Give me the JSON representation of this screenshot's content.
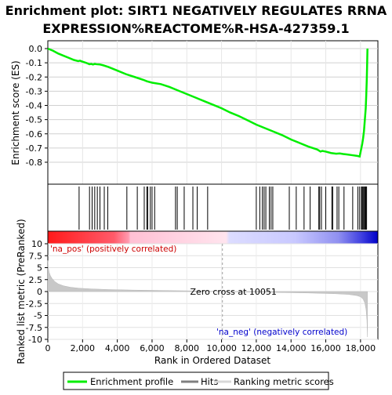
{
  "chart_data": {
    "type": "line",
    "title_line1": "Enrichment plot: SIRT1 NEGATIVELY REGULATES RRNA",
    "title_line2": "EXPRESSION%REACTOME%R-HSA-427359.1",
    "es_panel": {
      "ylabel": "Enrichment score (ES)",
      "ylim": [
        -0.8,
        0.0
      ],
      "yticks": [
        0.0,
        -0.1,
        -0.2,
        -0.3,
        -0.4,
        -0.5,
        -0.6,
        -0.7,
        -0.8
      ],
      "ytick_labels": [
        "0.0",
        "-0.1",
        "-0.2",
        "-0.3",
        "-0.4",
        "-0.5",
        "-0.6",
        "-0.7",
        "-0.8"
      ],
      "grid": true,
      "line_color": "#00ee00",
      "profile": [
        [
          0,
          0.0
        ],
        [
          300,
          -0.015
        ],
        [
          600,
          -0.035
        ],
        [
          900,
          -0.05
        ],
        [
          1200,
          -0.065
        ],
        [
          1500,
          -0.08
        ],
        [
          1750,
          -0.088
        ],
        [
          1850,
          -0.085
        ],
        [
          2000,
          -0.092
        ],
        [
          2200,
          -0.1
        ],
        [
          2400,
          -0.11
        ],
        [
          2500,
          -0.108
        ],
        [
          2600,
          -0.112
        ],
        [
          2700,
          -0.108
        ],
        [
          2800,
          -0.11
        ],
        [
          3000,
          -0.112
        ],
        [
          3200,
          -0.118
        ],
        [
          3500,
          -0.13
        ],
        [
          4000,
          -0.155
        ],
        [
          4500,
          -0.18
        ],
        [
          5000,
          -0.2
        ],
        [
          5500,
          -0.22
        ],
        [
          5700,
          -0.23
        ],
        [
          6000,
          -0.24
        ],
        [
          6500,
          -0.25
        ],
        [
          7000,
          -0.27
        ],
        [
          7500,
          -0.295
        ],
        [
          8000,
          -0.32
        ],
        [
          8500,
          -0.345
        ],
        [
          9000,
          -0.37
        ],
        [
          9500,
          -0.395
        ],
        [
          10000,
          -0.42
        ],
        [
          10500,
          -0.45
        ],
        [
          11000,
          -0.475
        ],
        [
          11500,
          -0.505
        ],
        [
          12000,
          -0.535
        ],
        [
          12500,
          -0.56
        ],
        [
          13000,
          -0.585
        ],
        [
          13500,
          -0.61
        ],
        [
          14000,
          -0.64
        ],
        [
          14500,
          -0.665
        ],
        [
          15000,
          -0.69
        ],
        [
          15500,
          -0.71
        ],
        [
          15700,
          -0.725
        ],
        [
          15800,
          -0.72
        ],
        [
          16000,
          -0.725
        ],
        [
          16300,
          -0.735
        ],
        [
          16600,
          -0.74
        ],
        [
          16800,
          -0.738
        ],
        [
          17000,
          -0.742
        ],
        [
          17200,
          -0.745
        ],
        [
          17500,
          -0.75
        ],
        [
          17800,
          -0.755
        ],
        [
          17950,
          -0.76
        ],
        [
          18000,
          -0.73
        ],
        [
          18050,
          -0.7
        ],
        [
          18100,
          -0.67
        ],
        [
          18150,
          -0.63
        ],
        [
          18200,
          -0.58
        ],
        [
          18250,
          -0.5
        ],
        [
          18300,
          -0.42
        ],
        [
          18330,
          -0.33
        ],
        [
          18360,
          -0.22
        ],
        [
          18380,
          -0.12
        ],
        [
          18400,
          0.0
        ]
      ]
    },
    "hits": [
      1800,
      2400,
      2550,
      2700,
      2850,
      3000,
      3250,
      3450,
      4550,
      5150,
      5550,
      5700,
      5750,
      5900,
      6000,
      6150,
      7350,
      7450,
      7850,
      8350,
      8600,
      9200,
      12000,
      12200,
      12350,
      12450,
      12550,
      12750,
      12850,
      12950,
      13900,
      14300,
      14750,
      15100,
      15600,
      15650,
      15750,
      16000,
      16350,
      16400,
      16650,
      16750,
      17050,
      17550,
      17850,
      17950,
      18050,
      18100,
      18150,
      18200,
      18250,
      18300,
      18350
    ],
    "metric_panel": {
      "ylabel": "Ranked list metric (PreRanked)",
      "ylim": [
        -10,
        10
      ],
      "yticks": [
        10,
        7.5,
        5,
        2.5,
        0,
        -2.5,
        -5,
        -7.5,
        -10
      ],
      "ytick_labels": [
        "10",
        "7.5",
        "5",
        "2.5",
        "0",
        "-2.5",
        "-5",
        "-7.5",
        "-10"
      ],
      "grid": true,
      "metric_curve": [
        [
          0,
          6.5
        ],
        [
          30,
          5.0
        ],
        [
          80,
          4.0
        ],
        [
          150,
          3.3
        ],
        [
          250,
          2.7
        ],
        [
          400,
          2.1
        ],
        [
          600,
          1.6
        ],
        [
          900,
          1.2
        ],
        [
          1300,
          0.9
        ],
        [
          1800,
          0.7
        ],
        [
          2500,
          0.55
        ],
        [
          3500,
          0.42
        ],
        [
          5000,
          0.3
        ],
        [
          7000,
          0.2
        ],
        [
          9000,
          0.1
        ],
        [
          10051,
          0.0
        ],
        [
          11000,
          -0.08
        ],
        [
          13000,
          -0.18
        ],
        [
          15000,
          -0.3
        ],
        [
          16500,
          -0.45
        ],
        [
          17300,
          -0.6
        ],
        [
          17800,
          -0.85
        ],
        [
          18000,
          -1.1
        ],
        [
          18150,
          -1.6
        ],
        [
          18250,
          -2.4
        ],
        [
          18320,
          -3.8
        ],
        [
          18370,
          -6.0
        ],
        [
          18400,
          -9.5
        ]
      ],
      "zero_cross_label": "Zero cross at 10051",
      "zero_cross_x": 10051,
      "pos_label": "'na_pos' (positively correlated)",
      "neg_label": "'na_neg' (negatively correlated)"
    },
    "xlabel": "Rank in Ordered Dataset",
    "xlim": [
      0,
      19000
    ],
    "xticks": [
      0,
      2000,
      4000,
      6000,
      8000,
      10000,
      12000,
      14000,
      16000,
      18000
    ],
    "xtick_labels": [
      "0",
      "2,000",
      "4,000",
      "6,000",
      "8,000",
      "10,000",
      "12,000",
      "14,000",
      "16,000",
      "18,000"
    ],
    "total_ranks": 18400,
    "legend": {
      "placement": "bottom",
      "items": [
        {
          "label": "Enrichment profile",
          "color": "#00ee00"
        },
        {
          "label": "Hits",
          "color": "#808080"
        },
        {
          "label": "Ranking metric scores",
          "color": "#d8d8d8"
        }
      ]
    },
    "colors": {
      "positive_strong": "#ff2020",
      "positive_weak": "#ffd0e0",
      "negative_weak": "#d0d0ff",
      "negative_strong": "#1010e0",
      "pos_label_color": "#cc0000",
      "neg_label_color": "#0000cc"
    }
  }
}
